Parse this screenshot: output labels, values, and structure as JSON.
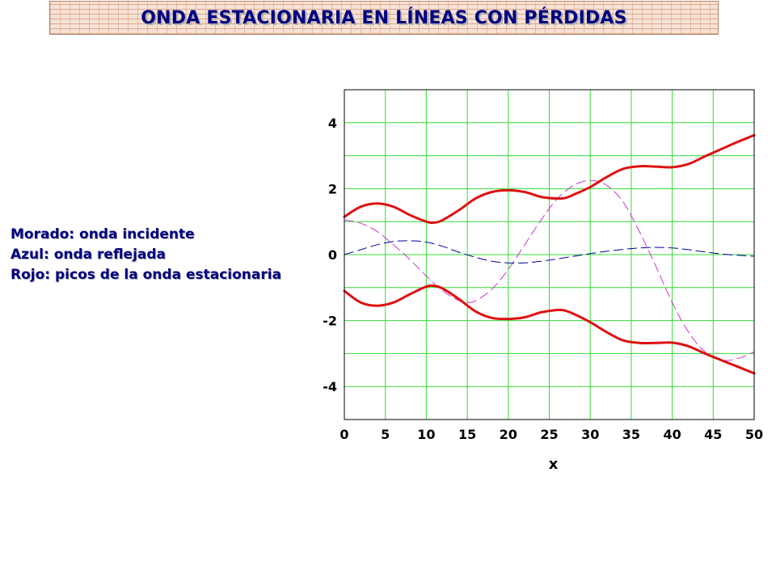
{
  "title": "ONDA ESTACIONARIA EN LÍNEAS CON PÉRDIDAS",
  "legend": {
    "line1": "Morado: onda incidente",
    "line2": "Azul: onda reflejada",
    "line3": "Rojo: picos de la onda estacionaria"
  },
  "chart_data": {
    "type": "line",
    "xlabel": "x",
    "ylabel": "",
    "xlim": [
      0,
      50
    ],
    "ylim": [
      -5,
      5
    ],
    "xticks": [
      0,
      5,
      10,
      15,
      20,
      25,
      30,
      35,
      40,
      45,
      50
    ],
    "yticks": [
      -4,
      -2,
      0,
      2,
      4
    ],
    "grid": true,
    "grid_color": "#33dd33",
    "series": [
      {
        "color": "#cc33cc",
        "dash": "dashed",
        "x": [
          0,
          2,
          4,
          6,
          8,
          10,
          12,
          14,
          15,
          16,
          18,
          20,
          22,
          24,
          26,
          28,
          30,
          32,
          34,
          36,
          38,
          40,
          42,
          44,
          46,
          48,
          50
        ],
        "y": [
          1.05,
          0.95,
          0.7,
          0.3,
          -0.15,
          -0.65,
          -1.1,
          -1.4,
          -1.45,
          -1.4,
          -1.05,
          -0.45,
          0.3,
          1.05,
          1.7,
          2.1,
          2.25,
          2.1,
          1.6,
          0.7,
          -0.35,
          -1.45,
          -2.35,
          -2.95,
          -3.2,
          -3.15,
          -2.95
        ]
      },
      {
        "color": "#000099",
        "dash": "dashed",
        "x": [
          0,
          2,
          4,
          6,
          8,
          10,
          12,
          14,
          16,
          18,
          20,
          22,
          24,
          26,
          28,
          30,
          32,
          34,
          36,
          38,
          40,
          42,
          44,
          46,
          48,
          50
        ],
        "y": [
          0.0,
          0.15,
          0.3,
          0.4,
          0.42,
          0.38,
          0.25,
          0.07,
          -0.08,
          -0.2,
          -0.25,
          -0.25,
          -0.2,
          -0.13,
          -0.05,
          0.03,
          0.1,
          0.16,
          0.2,
          0.22,
          0.2,
          0.15,
          0.08,
          0.02,
          -0.02,
          -0.05
        ]
      },
      {
        "color": "#dd1111",
        "dash": "solid",
        "x": [
          0,
          2,
          4,
          6,
          8,
          10,
          11,
          12,
          14,
          16,
          18,
          20,
          22,
          24,
          26,
          27,
          28,
          30,
          32,
          34,
          36,
          38,
          40,
          42,
          44,
          46,
          48,
          50
        ],
        "y": [
          1.15,
          1.45,
          1.55,
          1.45,
          1.2,
          1.0,
          0.97,
          1.05,
          1.35,
          1.7,
          1.9,
          1.95,
          1.9,
          1.75,
          1.7,
          1.72,
          1.82,
          2.05,
          2.35,
          2.6,
          2.68,
          2.67,
          2.65,
          2.75,
          2.98,
          3.2,
          3.42,
          3.62
        ]
      },
      {
        "color": "#dd1111",
        "dash": "solid",
        "x": [
          0,
          2,
          4,
          6,
          8,
          10,
          11,
          12,
          14,
          16,
          18,
          20,
          22,
          24,
          26,
          27,
          28,
          30,
          32,
          34,
          36,
          38,
          40,
          42,
          44,
          46,
          48,
          50
        ],
        "y": [
          -1.1,
          -1.45,
          -1.55,
          -1.45,
          -1.2,
          -0.97,
          -0.95,
          -1.03,
          -1.35,
          -1.72,
          -1.92,
          -1.95,
          -1.9,
          -1.75,
          -1.68,
          -1.7,
          -1.8,
          -2.05,
          -2.35,
          -2.6,
          -2.68,
          -2.68,
          -2.67,
          -2.78,
          -3.0,
          -3.2,
          -3.4,
          -3.6
        ]
      }
    ]
  }
}
